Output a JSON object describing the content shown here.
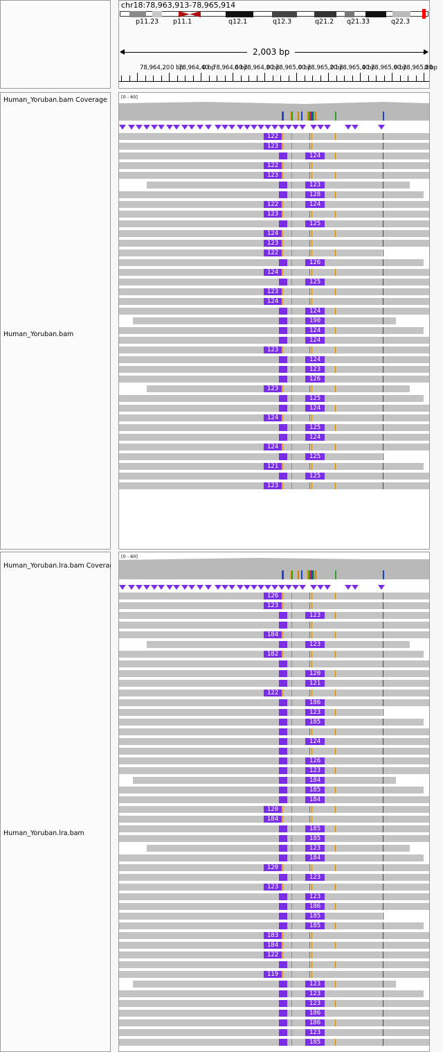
{
  "locus": "chr18:78,963,913-78,965,914",
  "ideogram": {
    "band_labels": [
      "p11.23",
      "p11.1",
      "q12.1",
      "q12.3",
      "q21.2",
      "q21.33",
      "q22.3"
    ]
  },
  "ruler": {
    "span_label": "2,003 bp",
    "tick_labels": [
      "78,964,20",
      "0 bp",
      "78,964,40",
      "0 bp",
      "78,964,60",
      "0 bp",
      "78,964,80",
      "0 bp",
      "78,965,00",
      "0 bp",
      "78,965,20",
      "0 bp",
      "78,965,40",
      "0 bp",
      "78,965,60",
      "0 bp",
      "78,965,80",
      "0 bp"
    ]
  },
  "tracks": {
    "bam_coverage_label": "Human_Yoruban.bam Coverage",
    "bam_label": "Human_Yoruban.bam",
    "lra_coverage_label": "Human_Yoruban.lra.bam Coverage",
    "lra_label": "Human_Yoruban.lra.bam",
    "coverage_range": "[0 - 60]"
  },
  "insertions_bam": [
    [
      "122",
      ""
    ],
    [
      "123",
      ""
    ],
    [
      "",
      "124"
    ],
    [
      "122",
      ""
    ],
    [
      "123",
      ""
    ],
    [
      "",
      "123"
    ],
    [
      "",
      "128"
    ],
    [
      "122",
      "124"
    ],
    [
      "123",
      ""
    ],
    [
      "",
      "125"
    ],
    [
      "124",
      ""
    ],
    [
      "123",
      ""
    ],
    [
      "122",
      ""
    ],
    [
      "",
      "126"
    ],
    [
      "124",
      ""
    ],
    [
      "",
      "125"
    ],
    [
      "123",
      ""
    ],
    [
      "124",
      ""
    ],
    [
      "",
      "124"
    ],
    [
      "",
      "190"
    ],
    [
      "",
      "124"
    ],
    [
      "",
      "124"
    ],
    [
      "123",
      ""
    ],
    [
      "",
      "124"
    ],
    [
      "",
      "123"
    ],
    [
      "",
      "126"
    ],
    [
      "123",
      ""
    ],
    [
      "",
      "125"
    ],
    [
      "",
      "124"
    ],
    [
      "124",
      ""
    ],
    [
      "",
      "125"
    ],
    [
      "",
      "124"
    ],
    [
      "124",
      ""
    ],
    [
      "",
      "125"
    ],
    [
      "121",
      ""
    ],
    [
      "",
      "125"
    ],
    [
      "123",
      ""
    ]
  ],
  "insertions_lra": [
    [
      "126",
      ""
    ],
    [
      "123",
      ""
    ],
    [
      "",
      "123"
    ],
    [
      "",
      ""
    ],
    [
      "184",
      ""
    ],
    [
      "",
      "123"
    ],
    [
      "182",
      ""
    ],
    [
      "",
      ""
    ],
    [
      "",
      "120"
    ],
    [
      "",
      "121"
    ],
    [
      "122",
      ""
    ],
    [
      "",
      "186"
    ],
    [
      "",
      "123"
    ],
    [
      "",
      "185"
    ],
    [
      "",
      ""
    ],
    [
      "",
      "124"
    ],
    [
      "",
      ""
    ],
    [
      "",
      "126"
    ],
    [
      "",
      "123"
    ],
    [
      "",
      "184"
    ],
    [
      "",
      "185"
    ],
    [
      "",
      "184"
    ],
    [
      "120",
      ""
    ],
    [
      "184",
      ""
    ],
    [
      "",
      "185"
    ],
    [
      "",
      "185"
    ],
    [
      "",
      "123"
    ],
    [
      "",
      "184"
    ],
    [
      "120",
      ""
    ],
    [
      "",
      "123"
    ],
    [
      "123",
      ""
    ],
    [
      "",
      "123"
    ],
    [
      "",
      "186"
    ],
    [
      "",
      "185"
    ],
    [
      "",
      "185"
    ],
    [
      "183",
      ""
    ],
    [
      "184",
      ""
    ],
    [
      "122",
      ""
    ],
    [
      "",
      ""
    ],
    [
      "119",
      ""
    ],
    [
      "",
      "123"
    ],
    [
      "",
      "123"
    ],
    [
      "",
      "123"
    ],
    [
      "",
      "186"
    ],
    [
      "",
      "186"
    ],
    [
      "",
      "123"
    ],
    [
      "",
      "185"
    ]
  ],
  "colors": {
    "insertion": "#7a2ee3",
    "read": "#c3c3c3",
    "coverage": "#b9b9b9",
    "mismatch_a": "#2ca02c",
    "mismatch_c": "#1f3fcf",
    "mismatch_g": "#d08a00",
    "mismatch_t": "#d62020"
  }
}
